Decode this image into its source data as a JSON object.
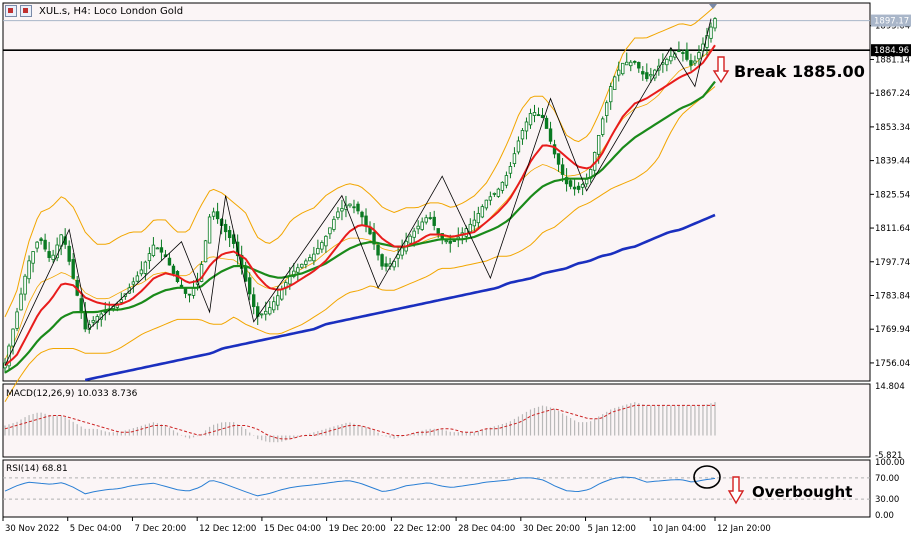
{
  "header": {
    "title": "XUL.s, H4:  Loco London Gold"
  },
  "annotations": {
    "break_label": "Break 1885.00",
    "overbought_label": "Overbought"
  },
  "colors": {
    "background": "#fbf5f6",
    "candle": "#0a7a22",
    "ema_fast": "#e81c1c",
    "ema_mid": "#1a8a1a",
    "ema_slow": "#1a2fbf",
    "bollinger": "#f2a600",
    "macd_signal": "#cc2222",
    "macd_hist": "#b9b9b9",
    "rsi_line": "#2a7fd4",
    "arrow": "#d42020"
  },
  "chart_data": [
    {
      "type": "line",
      "panel": "price",
      "title": "XUL.s, H4:  Loco London Gold",
      "ylim": [
        1749,
        1904
      ],
      "y_ticks": [
        1756.04,
        1769.94,
        1783.84,
        1797.74,
        1811.64,
        1825.54,
        1839.44,
        1853.34,
        1867.24,
        1881.14,
        1895.04
      ],
      "x_tick_labels": [
        "30 Nov 2022",
        "5 Dec 04:00",
        "7 Dec 20:00",
        "12 Dec 12:00",
        "15 Dec 04:00",
        "19 Dec 20:00",
        "22 Dec 12:00",
        "28 Dec 04:00",
        "30 Dec 20:00",
        "5 Jan 12:00",
        "10 Jan 04:00",
        "12 Jan 20:00"
      ],
      "price_label": "1897.17",
      "level_label": "1884.96",
      "level": 1884.96,
      "close_path": [
        1756,
        1776,
        1797,
        1808,
        1798,
        1810,
        1790,
        1770,
        1775,
        1778,
        1781,
        1788,
        1795,
        1805,
        1800,
        1790,
        1783,
        1792,
        1820,
        1812,
        1805,
        1790,
        1775,
        1778,
        1785,
        1793,
        1797,
        1801,
        1808,
        1818,
        1822,
        1818,
        1808,
        1795,
        1798,
        1806,
        1812,
        1817,
        1808,
        1805,
        1810,
        1815,
        1823,
        1827,
        1835,
        1850,
        1860,
        1857,
        1842,
        1830,
        1827,
        1833,
        1853,
        1872,
        1880,
        1880,
        1873,
        1878,
        1882,
        1885,
        1878,
        1888,
        1898
      ],
      "ema_fast": [
        1755,
        1759,
        1768,
        1777,
        1782,
        1789,
        1788,
        1783,
        1781,
        1780,
        1780,
        1782,
        1786,
        1791,
        1793,
        1792,
        1789,
        1790,
        1797,
        1801,
        1802,
        1799,
        1792,
        1787,
        1786,
        1788,
        1791,
        1794,
        1798,
        1804,
        1810,
        1813,
        1812,
        1807,
        1804,
        1804,
        1806,
        1809,
        1809,
        1808,
        1809,
        1810,
        1814,
        1818,
        1823,
        1831,
        1840,
        1846,
        1845,
        1841,
        1837,
        1836,
        1841,
        1850,
        1858,
        1863,
        1865,
        1868,
        1871,
        1874,
        1876,
        1880,
        1887
      ],
      "ema_mid": [
        1752,
        1755,
        1760,
        1766,
        1770,
        1775,
        1777,
        1777,
        1777,
        1778,
        1778,
        1779,
        1781,
        1784,
        1786,
        1787,
        1787,
        1787,
        1791,
        1794,
        1796,
        1796,
        1794,
        1792,
        1791,
        1792,
        1793,
        1795,
        1797,
        1800,
        1803,
        1805,
        1806,
        1805,
        1804,
        1804,
        1805,
        1806,
        1807,
        1807,
        1807,
        1808,
        1810,
        1812,
        1815,
        1820,
        1825,
        1829,
        1831,
        1832,
        1832,
        1832,
        1835,
        1840,
        1845,
        1849,
        1852,
        1855,
        1858,
        1861,
        1863,
        1866,
        1872
      ],
      "ema_slow": [
        1735,
        1737,
        1739,
        1741,
        1743,
        1745,
        1747,
        1749,
        1750,
        1751,
        1752,
        1753,
        1754,
        1755,
        1756,
        1757,
        1758,
        1759,
        1760,
        1762,
        1763,
        1764,
        1765,
        1766,
        1767,
        1768,
        1769,
        1770,
        1772,
        1773,
        1774,
        1775,
        1776,
        1777,
        1778,
        1779,
        1780,
        1781,
        1782,
        1783,
        1784,
        1785,
        1786,
        1787,
        1789,
        1790,
        1791,
        1793,
        1794,
        1795,
        1797,
        1798,
        1800,
        1801,
        1803,
        1804,
        1806,
        1808,
        1810,
        1811,
        1813,
        1815,
        1817
      ],
      "bb_upper": [
        1775,
        1785,
        1805,
        1818,
        1820,
        1825,
        1820,
        1810,
        1805,
        1805,
        1808,
        1810,
        1810,
        1815,
        1815,
        1810,
        1810,
        1820,
        1828,
        1826,
        1822,
        1818,
        1808,
        1805,
        1808,
        1815,
        1818,
        1820,
        1825,
        1828,
        1830,
        1829,
        1825,
        1820,
        1818,
        1820,
        1820,
        1822,
        1822,
        1820,
        1822,
        1825,
        1830,
        1838,
        1848,
        1860,
        1866,
        1866,
        1860,
        1850,
        1847,
        1850,
        1860,
        1872,
        1884,
        1890,
        1890,
        1892,
        1894,
        1896,
        1895,
        1899,
        1903
      ],
      "bb_lower": [
        1740,
        1748,
        1755,
        1760,
        1762,
        1762,
        1762,
        1760,
        1760,
        1760,
        1762,
        1765,
        1768,
        1770,
        1772,
        1774,
        1774,
        1774,
        1772,
        1772,
        1775,
        1772,
        1770,
        1768,
        1768,
        1770,
        1772,
        1775,
        1778,
        1782,
        1785,
        1786,
        1788,
        1786,
        1786,
        1788,
        1790,
        1792,
        1795,
        1795,
        1796,
        1797,
        1798,
        1800,
        1800,
        1802,
        1805,
        1810,
        1812,
        1816,
        1820,
        1822,
        1825,
        1828,
        1830,
        1832,
        1835,
        1840,
        1850,
        1858,
        1862,
        1866,
        1870
      ],
      "zigzag": [
        [
          0,
          1755
        ],
        [
          16,
          1811
        ],
        [
          21,
          1770
        ],
        [
          44,
          1806
        ],
        [
          51,
          1777
        ],
        [
          55,
          1825
        ],
        [
          62,
          1773
        ],
        [
          84,
          1825
        ],
        [
          93,
          1787
        ],
        [
          109,
          1833
        ],
        [
          121,
          1791
        ],
        [
          136,
          1865
        ],
        [
          145,
          1827
        ],
        [
          166,
          1886
        ],
        [
          172,
          1870
        ],
        [
          176,
          1898
        ]
      ]
    },
    {
      "type": "bar",
      "panel": "macd",
      "title": "MACD(12,26,9) 10.033 8.736",
      "ylim": [
        -5.821,
        14.804
      ],
      "y_ticks": [
        14.804,
        -5.821
      ],
      "histogram": [
        3,
        4,
        6,
        7,
        6,
        6,
        4,
        2,
        2,
        1,
        1,
        2,
        3,
        4,
        3,
        1,
        -1,
        0,
        3,
        4,
        4,
        2,
        -1,
        -2,
        -2,
        -1,
        0,
        1,
        2,
        3,
        4,
        3,
        2,
        0,
        -1,
        0,
        1,
        2,
        2,
        1,
        1,
        1,
        2,
        3,
        4,
        6,
        8,
        9,
        8,
        6,
        4,
        4,
        6,
        8,
        9,
        10,
        9,
        9,
        9,
        9,
        9,
        9,
        10
      ],
      "signal": [
        2,
        3,
        4,
        5,
        6,
        6,
        5,
        4,
        3,
        2,
        1,
        1,
        2,
        3,
        3,
        2,
        1,
        0,
        1,
        2,
        3,
        3,
        2,
        0,
        -1,
        -1,
        0,
        0,
        1,
        2,
        3,
        3,
        2,
        1,
        0,
        0,
        1,
        1,
        2,
        2,
        1,
        1,
        2,
        2,
        3,
        4,
        6,
        7,
        8,
        7,
        6,
        5,
        5,
        7,
        8,
        9,
        9,
        9,
        9,
        9,
        9,
        9,
        9
      ]
    },
    {
      "type": "line",
      "panel": "rsi",
      "title": "RSI(14) 68.81",
      "ylim": [
        0,
        100
      ],
      "y_ticks": [
        100,
        70,
        30,
        0
      ],
      "y_tick_labels": [
        "100.00",
        "70.00",
        "30.00",
        "0.00"
      ],
      "levels": [
        70,
        30
      ],
      "values": [
        45,
        55,
        62,
        60,
        58,
        61,
        52,
        40,
        45,
        48,
        50,
        55,
        58,
        60,
        54,
        48,
        45,
        52,
        66,
        60,
        52,
        44,
        36,
        40,
        47,
        52,
        55,
        57,
        60,
        63,
        65,
        60,
        52,
        44,
        48,
        55,
        58,
        61,
        55,
        52,
        55,
        58,
        62,
        64,
        66,
        70,
        70,
        66,
        55,
        46,
        44,
        48,
        60,
        68,
        72,
        70,
        62,
        64,
        66,
        67,
        62,
        66,
        69
      ]
    }
  ]
}
